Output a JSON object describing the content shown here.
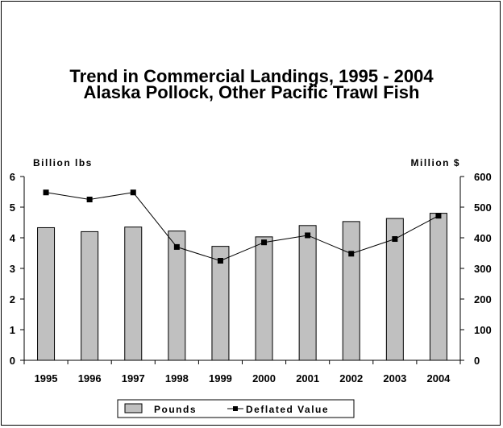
{
  "chart_data": {
    "type": "bar",
    "title": "Trend  in Commercial Landings, 1995 - 2004",
    "subtitle": "Alaska Pollock, Other Pacific Trawl Fish",
    "categories": [
      "1995",
      "1996",
      "1997",
      "1998",
      "1999",
      "2000",
      "2001",
      "2002",
      "2003",
      "2004"
    ],
    "series": [
      {
        "name": "Pounds",
        "type": "bar",
        "axis": "left",
        "values": [
          4.33,
          4.2,
          4.35,
          4.22,
          3.72,
          4.03,
          4.4,
          4.53,
          4.63,
          4.8
        ],
        "color": "#c0c0c0"
      },
      {
        "name": "Deflated Value",
        "type": "line",
        "axis": "right",
        "values": [
          548,
          525,
          548,
          370,
          325,
          385,
          408,
          348,
          396,
          472
        ],
        "color": "#000000"
      }
    ],
    "y_left": {
      "label": "Billion lbs",
      "ylim": [
        0,
        6
      ],
      "ticks": [
        "0",
        "1",
        "2",
        "3",
        "4",
        "5",
        "6"
      ]
    },
    "y_right": {
      "label": "Million $",
      "ylim": [
        0,
        600
      ],
      "ticks": [
        "0",
        "100",
        "200",
        "300",
        "400",
        "500",
        "600"
      ]
    },
    "legend": "bottom-center",
    "grid": false
  }
}
